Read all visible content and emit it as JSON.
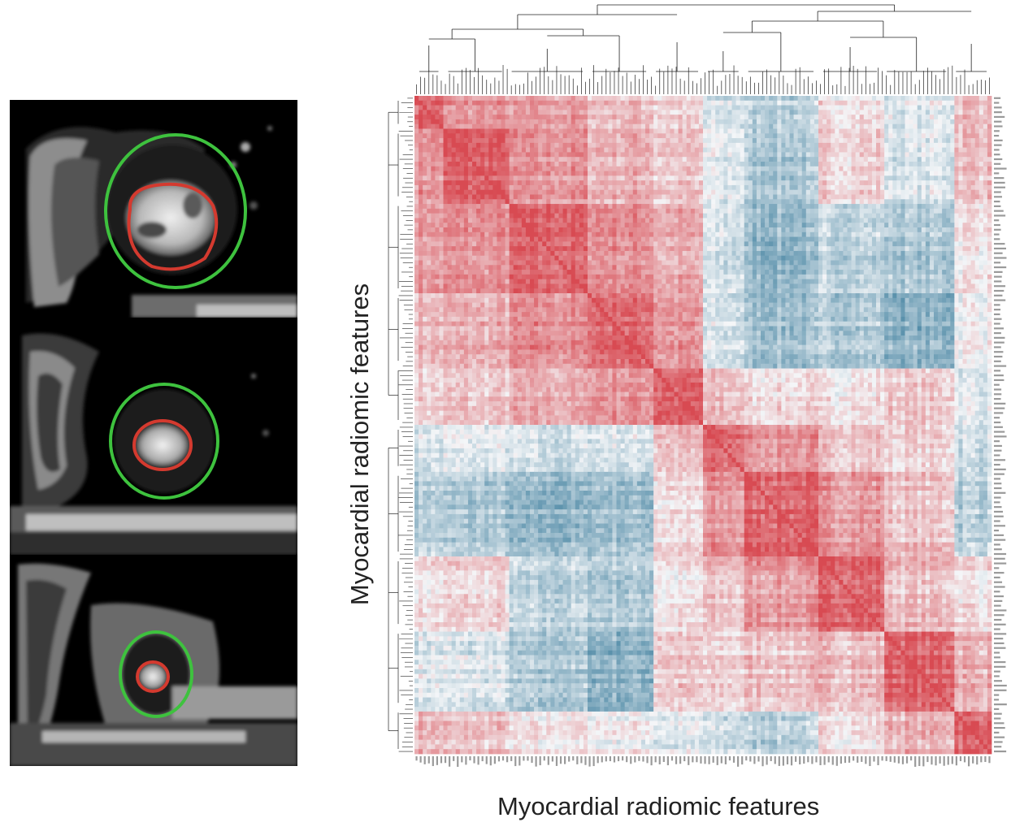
{
  "figure": {
    "x_axis_label": "Myocardial radiomic features",
    "y_axis_label": "Myocardial radiomic features"
  },
  "mri": {
    "slices": [
      {
        "position": "basal",
        "epicardial_contour_color": "#3ec23e",
        "endocardial_contour_color": "#d43a2f"
      },
      {
        "position": "mid",
        "epicardial_contour_color": "#3ec23e",
        "endocardial_contour_color": "#d43a2f"
      },
      {
        "position": "apical",
        "epicardial_contour_color": "#3ec23e",
        "endocardial_contour_color": "#d43a2f"
      }
    ]
  },
  "chart_data": {
    "type": "heatmap",
    "title": "",
    "xlabel": "Myocardial radiomic features",
    "ylabel": "Myocardial radiomic features",
    "color_scale": {
      "positive": "#d84a52",
      "zero": "#f4f6f8",
      "negative": "#3f7f9e",
      "range": [
        -1,
        1
      ]
    },
    "dendrograms": [
      "top",
      "left"
    ],
    "cluster_boundaries": [
      0,
      0.05,
      0.16,
      0.3,
      0.41,
      0.5,
      0.57,
      0.7,
      0.81,
      0.93,
      1.0
    ],
    "block_correlations": [
      [
        0.85,
        0.55,
        0.5,
        0.35,
        0.2,
        -0.15,
        -0.3,
        0.15,
        -0.1,
        0.35
      ],
      [
        0.55,
        0.85,
        0.55,
        0.4,
        0.25,
        -0.1,
        -0.4,
        0.2,
        -0.15,
        0.3
      ],
      [
        0.5,
        0.55,
        0.8,
        0.6,
        0.4,
        -0.2,
        -0.55,
        -0.3,
        -0.4,
        0.1
      ],
      [
        0.35,
        0.4,
        0.6,
        0.85,
        0.55,
        -0.15,
        -0.45,
        -0.35,
        -0.55,
        0.05
      ],
      [
        0.2,
        0.25,
        0.4,
        0.55,
        0.85,
        0.3,
        0.15,
        0.1,
        0.25,
        -0.1
      ],
      [
        -0.15,
        -0.1,
        -0.2,
        -0.15,
        0.3,
        0.8,
        0.55,
        0.3,
        0.2,
        -0.2
      ],
      [
        -0.3,
        -0.4,
        -0.55,
        -0.45,
        0.15,
        0.55,
        0.85,
        0.55,
        0.3,
        -0.3
      ],
      [
        0.15,
        0.2,
        -0.3,
        -0.35,
        0.1,
        0.3,
        0.55,
        0.85,
        0.35,
        0.15
      ],
      [
        -0.1,
        -0.15,
        -0.4,
        -0.55,
        0.25,
        0.2,
        0.3,
        0.35,
        0.85,
        0.4
      ],
      [
        0.35,
        0.3,
        0.1,
        0.05,
        -0.1,
        -0.2,
        -0.3,
        0.15,
        0.4,
        0.85
      ]
    ]
  }
}
